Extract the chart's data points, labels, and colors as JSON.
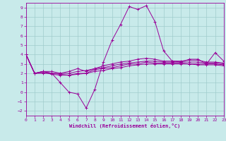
{
  "title": "",
  "xlabel": "Windchill (Refroidissement éolien,°C)",
  "ylabel": "",
  "xlim": [
    0,
    23
  ],
  "ylim": [
    -2.5,
    9.5
  ],
  "xticks": [
    0,
    1,
    2,
    3,
    4,
    5,
    6,
    7,
    8,
    9,
    10,
    11,
    12,
    13,
    14,
    15,
    16,
    17,
    18,
    19,
    20,
    21,
    22,
    23
  ],
  "yticks": [
    -2,
    -1,
    0,
    1,
    2,
    3,
    4,
    5,
    6,
    7,
    8,
    9
  ],
  "bg_color": "#c8eaea",
  "grid_color": "#a0cccc",
  "line_color": "#990099",
  "lines": [
    [
      4.0,
      2.0,
      2.0,
      2.0,
      1.0,
      0.0,
      -0.2,
      -1.7,
      0.3,
      3.2,
      5.5,
      7.2,
      9.1,
      8.8,
      9.2,
      7.5,
      4.4,
      3.3,
      3.2,
      3.5,
      3.5,
      3.0,
      4.2,
      3.3
    ],
    [
      4.0,
      2.0,
      2.2,
      2.2,
      2.0,
      2.2,
      2.5,
      2.2,
      2.5,
      2.8,
      3.0,
      3.2,
      3.3,
      3.5,
      3.6,
      3.5,
      3.3,
      3.3,
      3.3,
      3.4,
      3.4,
      3.2,
      3.2,
      3.1
    ],
    [
      4.0,
      2.0,
      2.2,
      2.0,
      2.0,
      2.0,
      2.2,
      2.3,
      2.5,
      2.6,
      2.8,
      3.0,
      3.1,
      3.2,
      3.3,
      3.3,
      3.2,
      3.2,
      3.2,
      3.2,
      3.2,
      3.1,
      3.1,
      3.0
    ],
    [
      4.0,
      2.0,
      2.2,
      2.0,
      1.9,
      1.8,
      2.0,
      2.0,
      2.4,
      2.5,
      2.6,
      2.8,
      3.0,
      3.0,
      3.2,
      3.1,
      3.1,
      3.1,
      3.1,
      3.0,
      3.0,
      3.0,
      3.0,
      2.9
    ],
    [
      4.0,
      2.0,
      2.1,
      1.9,
      1.8,
      1.8,
      1.9,
      2.0,
      2.2,
      2.3,
      2.5,
      2.6,
      2.8,
      2.9,
      3.0,
      3.0,
      3.0,
      3.0,
      3.0,
      3.0,
      2.9,
      2.9,
      2.9,
      2.8
    ]
  ],
  "font_family": "monospace"
}
